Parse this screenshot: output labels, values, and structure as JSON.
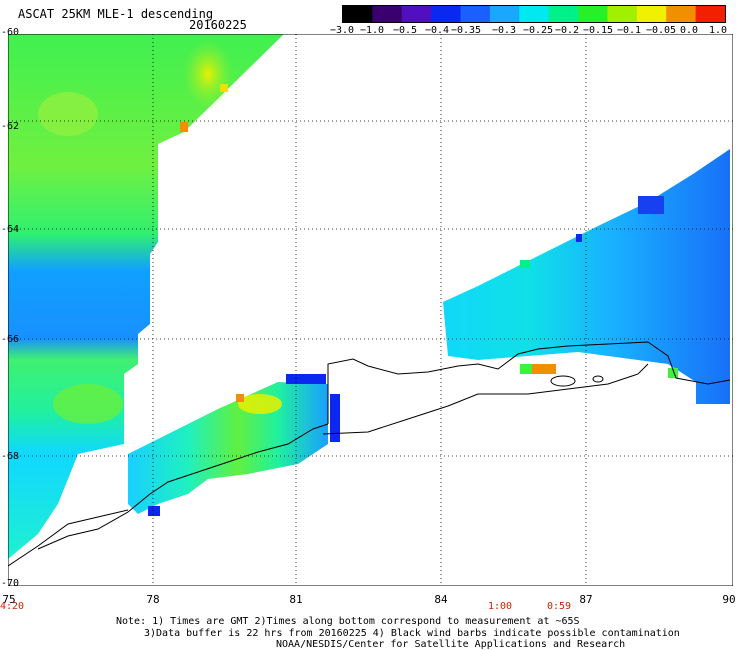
{
  "header": {
    "title": "ASCAT 25KM MLE-1 descending",
    "date": "20160225"
  },
  "colorbar": {
    "labels": [
      "−3.0",
      "−1.0",
      "−0.5",
      "−0.4",
      "−0.35",
      "−0.3",
      "−0.25",
      "−0.2",
      "−0.15",
      "−0.1",
      "−0.05",
      "0.0",
      "1.0"
    ],
    "colors": [
      "#000000",
      "#3a0070",
      "#5010c0",
      "#0a28f0",
      "#1a60ff",
      "#1aa8ff",
      "#00e8f0",
      "#00f08a",
      "#28f028",
      "#a0f000",
      "#f0f000",
      "#f09000",
      "#f02000"
    ]
  },
  "map": {
    "lat_labels": [
      "-60",
      "-62",
      "-64",
      "-66",
      "-68",
      "-70"
    ],
    "lon_labels": [
      "75",
      "78",
      "81",
      "84",
      "87",
      "90"
    ],
    "time_labels": [
      "4:20",
      "1:00",
      "0:59"
    ]
  },
  "footer": {
    "note1": "Note: 1) Times are GMT 2)Times along bottom correspond to measurement at ~65S",
    "note2": "3)Data buffer is 22 hrs from 20160225 4) Black wind barbs indicate possible contamination",
    "note3": "NOAA/NESDIS/Center for Satellite Applications and Research"
  }
}
